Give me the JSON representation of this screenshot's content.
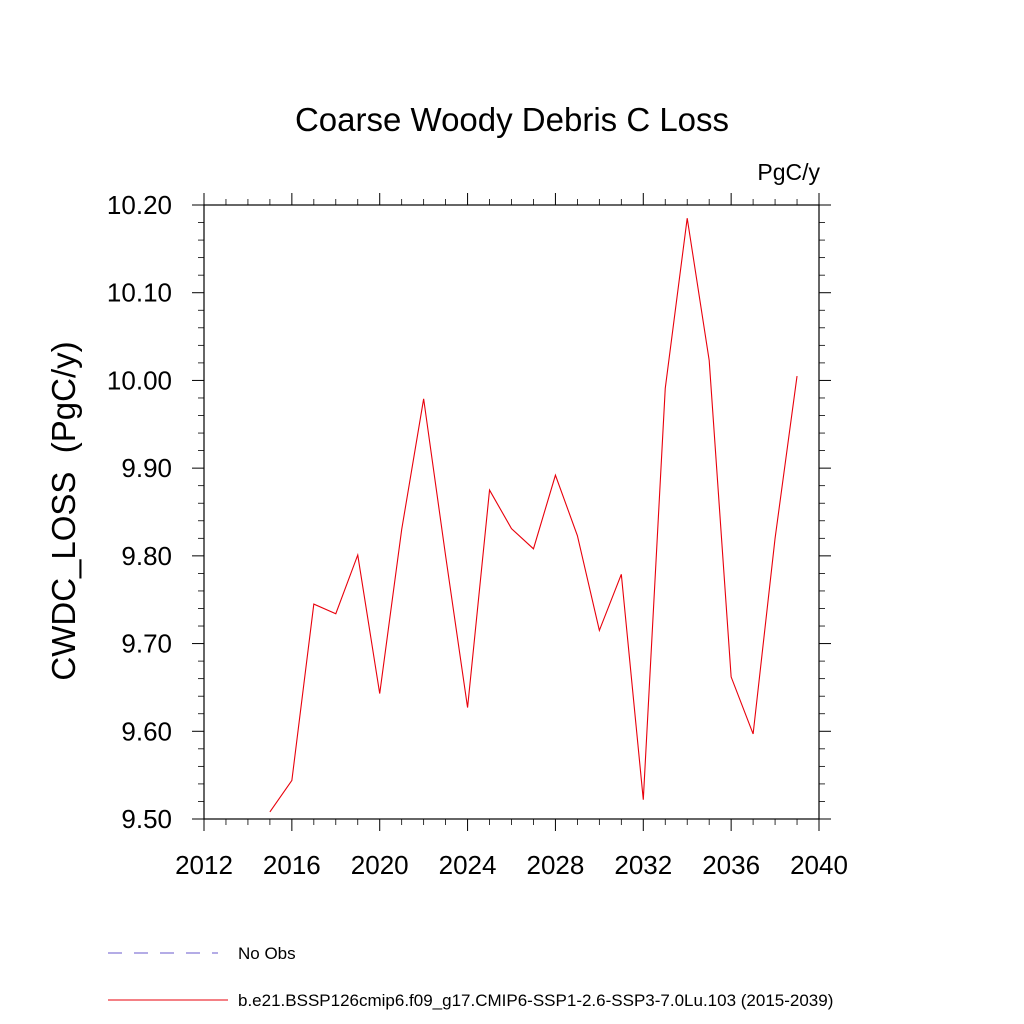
{
  "chart_data": {
    "type": "line",
    "title": "Coarse Woody Debris C Loss",
    "units_label": "PgC/y",
    "ylabel": "CWDC_LOSS  (PgC/y)",
    "xlabel": "",
    "xlim": [
      2012,
      2040
    ],
    "ylim": [
      9.5,
      10.2
    ],
    "x_ticks": [
      2012,
      2016,
      2020,
      2024,
      2028,
      2032,
      2036,
      2040
    ],
    "x_tick_labels": [
      "2012",
      "2016",
      "2020",
      "2024",
      "2028",
      "2032",
      "2036",
      "2040"
    ],
    "y_ticks": [
      9.5,
      9.6,
      9.7,
      9.8,
      9.9,
      10.0,
      10.1,
      10.2
    ],
    "y_tick_labels": [
      "9.50",
      "9.60",
      "9.70",
      "9.80",
      "9.90",
      "10.00",
      "10.10",
      "10.20"
    ],
    "grid": false,
    "legend_position": "bottom-left",
    "legend": [
      {
        "label": "No Obs",
        "color": "#6a5acd",
        "style": "dashed"
      },
      {
        "label": "b.e21.BSSP126cmip6.f09_g17.CMIP6-SSP1-2.6-SSP3-7.0Lu.103 (2015-2039)",
        "color": "#e8000b",
        "style": "solid"
      }
    ],
    "series": [
      {
        "color": "#e8000b",
        "x": [
          2015,
          2016,
          2017,
          2018,
          2019,
          2020,
          2021,
          2022,
          2023,
          2024,
          2025,
          2026,
          2027,
          2028,
          2029,
          2030,
          2031,
          2032,
          2033,
          2034,
          2035,
          2036,
          2037,
          2038,
          2039
        ],
        "y": [
          9.508,
          9.544,
          9.745,
          9.734,
          9.801,
          9.643,
          9.83,
          9.979,
          9.8,
          9.627,
          9.875,
          9.831,
          9.808,
          9.892,
          9.823,
          9.715,
          9.779,
          9.522,
          9.991,
          10.185,
          10.023,
          9.662,
          9.597,
          9.82,
          10.005
        ]
      }
    ]
  }
}
